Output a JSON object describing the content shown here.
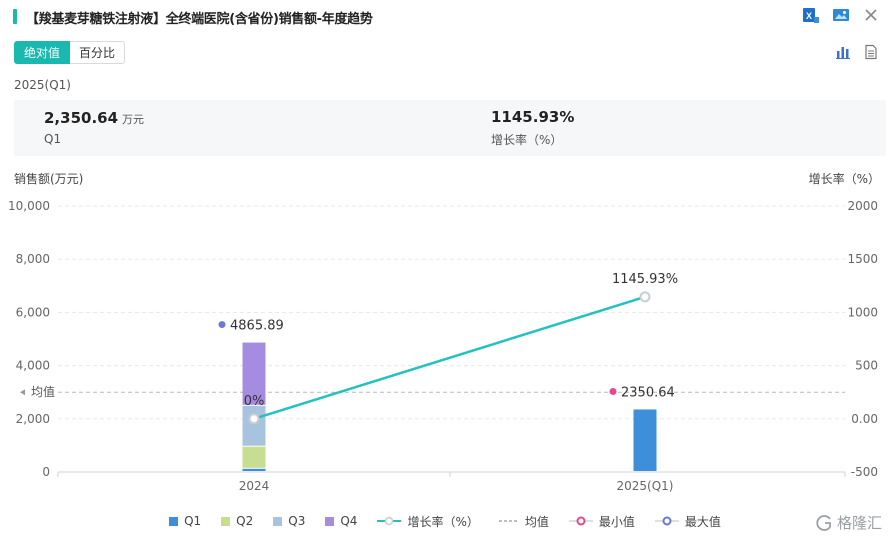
{
  "header": {
    "title": "【羧基麦芽糖铁注射液】全终端医院(含省份)销售额-年度趋势"
  },
  "icons": {
    "excel": "excel-export-icon",
    "image": "image-export-icon",
    "close": "close-icon",
    "bar": "bar-chart-icon",
    "doc": "document-icon"
  },
  "toggle": {
    "absolute_label": "绝对值",
    "percent_label": "百分比"
  },
  "period_label": "2025(Q1)",
  "summary": {
    "value": "2,350.64",
    "unit": "万元",
    "value_label": "Q1",
    "growth": "1145.93%",
    "growth_label": "增长率（%）"
  },
  "colors": {
    "accent": "#1ab9b0",
    "q1": "#3d8fd9",
    "q2": "#c7dd8f",
    "q3": "#a8c3de",
    "q4": "#a58ce0",
    "line": "#24c1c0",
    "min_marker": "#e8488b",
    "max_marker": "#6a78dd"
  },
  "chart_data": {
    "type": "bar",
    "stacked": true,
    "categories": [
      "2024",
      "2025(Q1)"
    ],
    "series": [
      {
        "name": "Q1",
        "values": [
          120,
          2350.64
        ]
      },
      {
        "name": "Q2",
        "values": [
          830,
          0
        ]
      },
      {
        "name": "Q3",
        "values": [
          1540,
          0
        ]
      },
      {
        "name": "Q4",
        "values": [
          2375.89,
          0
        ]
      }
    ],
    "totals": [
      4865.89,
      2350.64
    ],
    "total_labels": [
      "4865.89",
      "2350.64"
    ],
    "growth_rate": {
      "name": "增长率（%）",
      "values": [
        0,
        1145.93
      ],
      "labels": [
        "0%",
        "1145.93%"
      ]
    },
    "mean": {
      "name": "均值",
      "value": 3000,
      "label": "均值"
    },
    "min": {
      "name": "最小值",
      "category_index": 1
    },
    "max": {
      "name": "最大值",
      "category_index": 0
    },
    "ylabel": "销售额(万元)",
    "y2label": "增长率（%）",
    "ylim": [
      0,
      10000
    ],
    "yticks": [
      "0",
      "2,000",
      "4,000",
      "6,000",
      "8,000",
      "10,000"
    ],
    "y2lim": [
      -500,
      2000
    ],
    "y2ticks": [
      "-500",
      "0.00",
      "500",
      "1000",
      "1500",
      "2000"
    ],
    "grid": true,
    "legend_position": "bottom"
  },
  "legend": {
    "items": [
      {
        "label": "Q1",
        "kind": "square",
        "color": "#3d8fd9"
      },
      {
        "label": "Q2",
        "kind": "square",
        "color": "#c7dd8f"
      },
      {
        "label": "Q3",
        "kind": "square",
        "color": "#a8c3de"
      },
      {
        "label": "Q4",
        "kind": "square",
        "color": "#a58ce0"
      },
      {
        "label": "增长率（%）",
        "kind": "line-circle",
        "color": "#24c1c0"
      },
      {
        "label": "均值",
        "kind": "dash",
        "color": "#999999"
      },
      {
        "label": "最小值",
        "kind": "line-ring",
        "color": "#e8488b"
      },
      {
        "label": "最大值",
        "kind": "line-ring",
        "color": "#6a78dd"
      }
    ]
  },
  "watermark": {
    "text": "格隆汇"
  }
}
